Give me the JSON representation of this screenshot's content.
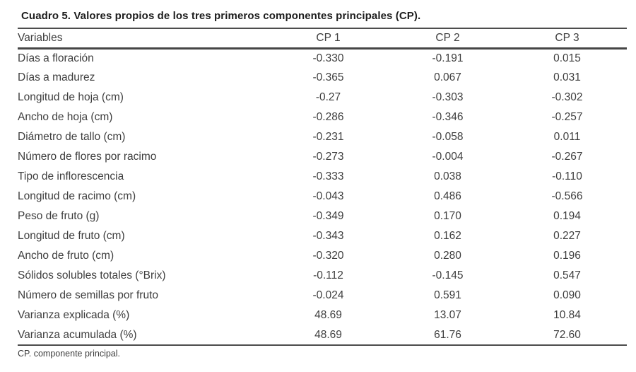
{
  "colors": {
    "background": "#ffffff",
    "title_text": "#1d1d1d",
    "body_text": "#3e3e3e",
    "rule": "#4d4d4d"
  },
  "chart_data": {
    "type": "table",
    "title": "Cuadro 5. Valores propios de los tres primeros componentes principales (CP).",
    "columns": [
      "Variables",
      "CP 1",
      "CP 2",
      "CP 3"
    ],
    "rows": [
      [
        "Días a floración",
        "-0.330",
        "-0.191",
        "0.015"
      ],
      [
        "Días a madurez",
        "-0.365",
        "0.067",
        "0.031"
      ],
      [
        "Longitud de hoja (cm)",
        "-0.27",
        "-0.303",
        "-0.302"
      ],
      [
        "Ancho de hoja (cm)",
        "-0.286",
        "-0.346",
        "-0.257"
      ],
      [
        "Diámetro de tallo (cm)",
        "-0.231",
        "-0.058",
        "0.011"
      ],
      [
        "Número de flores por racimo",
        "-0.273",
        "-0.004",
        "-0.267"
      ],
      [
        "Tipo de inflorescencia",
        "-0.333",
        "0.038",
        "-0.110"
      ],
      [
        "Longitud de racimo (cm)",
        "-0.043",
        "0.486",
        "-0.566"
      ],
      [
        "Peso de fruto (g)",
        "-0.349",
        "0.170",
        "0.194"
      ],
      [
        "Longitud de fruto (cm)",
        "-0.343",
        "0.162",
        "0.227"
      ],
      [
        "Ancho de fruto (cm)",
        "-0.320",
        "0.280",
        "0.196"
      ],
      [
        "Sólidos solubles totales (°Brix)",
        "-0.112",
        "-0.145",
        "0.547"
      ],
      [
        "Número de semillas por fruto",
        "-0.024",
        "0.591",
        "0.090"
      ],
      [
        "Varianza explicada (%)",
        "48.69",
        "13.07",
        "10.84"
      ],
      [
        "Varianza acumulada (%)",
        "48.69",
        "61.76",
        "72.60"
      ]
    ],
    "footnote": "CP. componente principal."
  }
}
